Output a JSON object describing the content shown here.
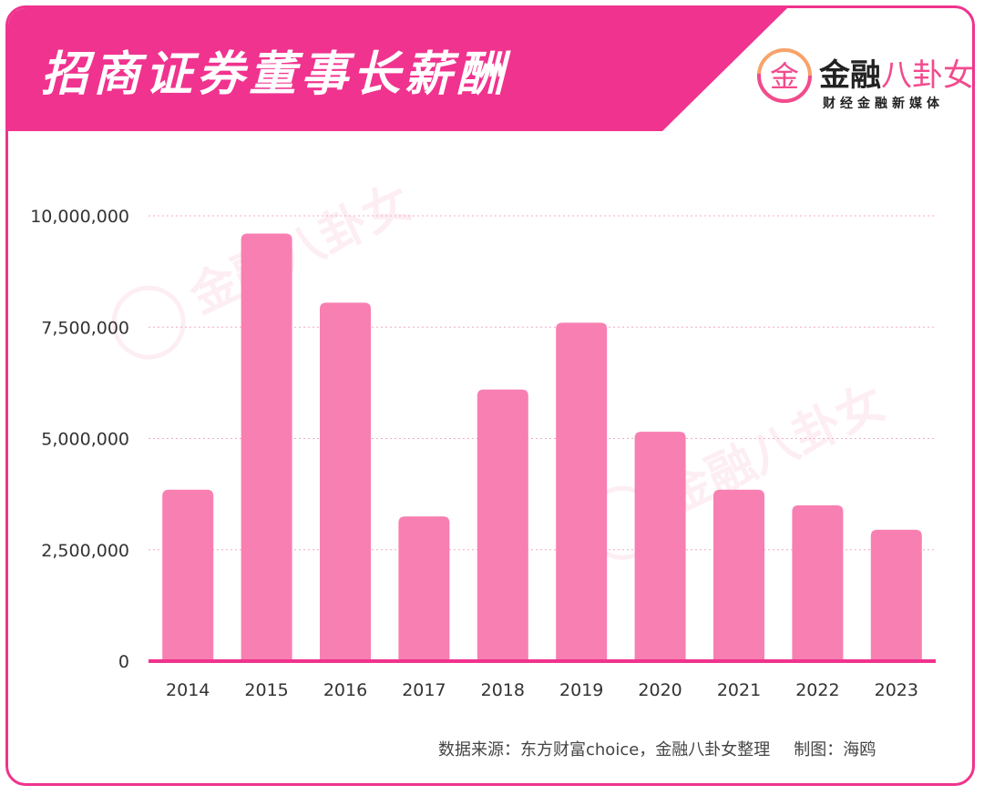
{
  "header": {
    "title": "招商证券董事长薪酬"
  },
  "logo": {
    "mark_char": "金",
    "name_part1": "金融",
    "name_part2": "八卦女",
    "tagline": "财经金融新媒体"
  },
  "colors": {
    "brand_pink": "#f0338e",
    "bar_pink": "#f87fb1",
    "grid": "#f4a9c8"
  },
  "chart_data": {
    "type": "bar",
    "title": "招商证券董事长薪酬",
    "xlabel": "",
    "ylabel": "",
    "categories": [
      "2014",
      "2015",
      "2016",
      "2017",
      "2018",
      "2019",
      "2020",
      "2021",
      "2022",
      "2023"
    ],
    "values": [
      3850000,
      9600000,
      8050000,
      3250000,
      6100000,
      7600000,
      5150000,
      3850000,
      3500000,
      2950000
    ],
    "ylim": [
      0,
      10000000
    ],
    "yticks": [
      0,
      2500000,
      5000000,
      7500000,
      10000000
    ],
    "ytick_labels": [
      "0",
      "2,500,000",
      "5,000,000",
      "7,500,000",
      "10,000,000"
    ],
    "grid": true,
    "legend": "none"
  },
  "footer": {
    "source": "数据来源：东方财富choice，金融八卦女整理",
    "credit": "制图：海鸥"
  }
}
